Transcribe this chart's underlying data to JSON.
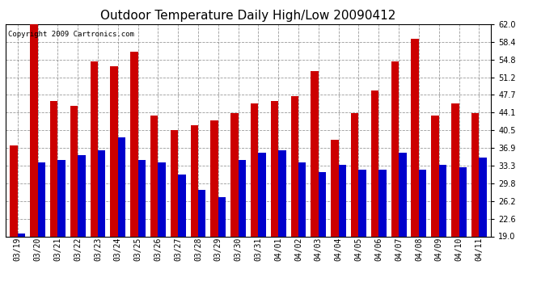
{
  "title": "Outdoor Temperature Daily High/Low 20090412",
  "copyright": "Copyright 2009 Cartronics.com",
  "dates": [
    "03/19",
    "03/20",
    "03/21",
    "03/22",
    "03/23",
    "03/24",
    "03/25",
    "03/26",
    "03/27",
    "03/28",
    "03/29",
    "03/30",
    "03/31",
    "04/01",
    "04/02",
    "04/03",
    "04/04",
    "04/05",
    "04/06",
    "04/07",
    "04/08",
    "04/09",
    "04/10",
    "04/11"
  ],
  "highs": [
    37.5,
    62.0,
    46.5,
    45.5,
    54.5,
    53.5,
    56.5,
    43.5,
    40.5,
    41.5,
    42.5,
    44.0,
    46.0,
    46.5,
    47.5,
    52.5,
    38.5,
    44.0,
    48.5,
    54.5,
    59.0,
    43.5,
    46.0,
    44.0
  ],
  "lows": [
    19.5,
    34.0,
    34.5,
    35.5,
    36.5,
    39.0,
    34.5,
    34.0,
    31.5,
    28.5,
    27.0,
    34.5,
    36.0,
    36.5,
    34.0,
    32.0,
    33.5,
    32.5,
    32.5,
    36.0,
    32.5,
    33.5,
    33.0,
    35.0
  ],
  "high_color": "#cc0000",
  "low_color": "#0000cc",
  "background_color": "#ffffff",
  "plot_bg_color": "#ffffff",
  "ymin": 19.0,
  "ymax": 62.0,
  "yticks": [
    19.0,
    22.6,
    26.2,
    29.8,
    33.3,
    36.9,
    40.5,
    44.1,
    47.7,
    51.2,
    54.8,
    58.4,
    62.0
  ],
  "bar_width": 0.38,
  "title_fontsize": 11,
  "tick_fontsize": 7,
  "copyright_fontsize": 6.5
}
